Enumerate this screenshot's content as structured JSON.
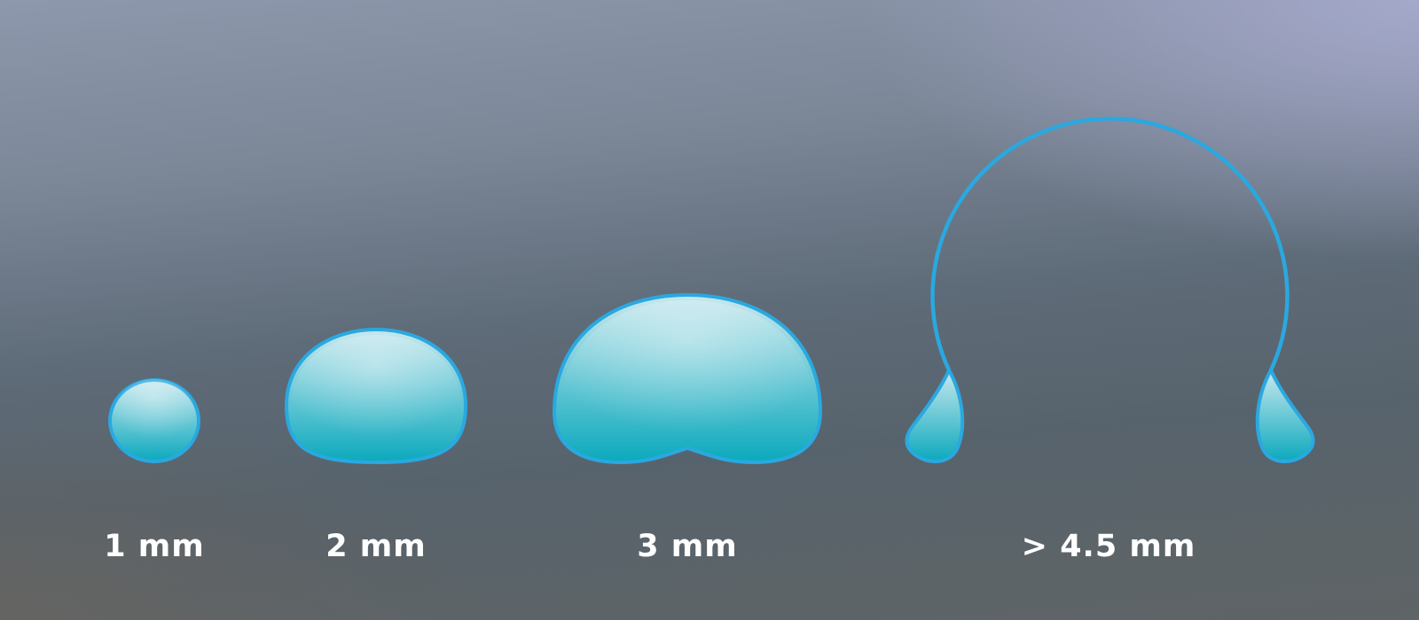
{
  "colors": {
    "drop_outline": "#2aa8e0",
    "drop_fill_top": "#c8e8ee",
    "drop_fill_bottom": "#0ba9bd",
    "label_text": "#ffffff"
  },
  "drops": [
    {
      "id": "drop-1mm",
      "label": "1 mm",
      "shape": "sphere"
    },
    {
      "id": "drop-2mm",
      "label": "2 mm",
      "shape": "flattened-dome"
    },
    {
      "id": "drop-3mm",
      "label": "3 mm",
      "shape": "bean-indented"
    },
    {
      "id": "drop-4_5mm",
      "label": "> 4.5 mm",
      "shape": "bag-breakup"
    }
  ]
}
